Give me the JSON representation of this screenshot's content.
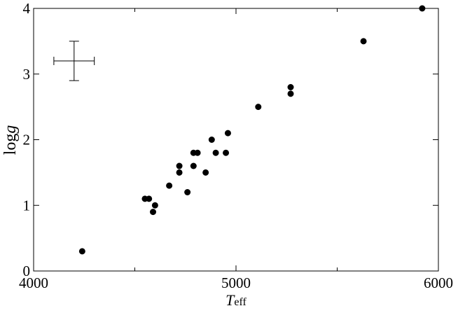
{
  "chart_data": {
    "type": "scatter",
    "xlabel": [
      "T",
      "eff"
    ],
    "ylabel": [
      "log",
      "g"
    ],
    "x": [
      4240,
      4550,
      4570,
      4600,
      4590,
      4670,
      4720,
      4720,
      4760,
      4790,
      4790,
      4810,
      4850,
      4880,
      4900,
      4950,
      4960,
      5110,
      5270,
      5270,
      5630,
      5920
    ],
    "series": [
      {
        "color": "#000000",
        "values": [
          0.3,
          1.1,
          1.1,
          1.0,
          0.9,
          1.3,
          1.6,
          1.5,
          1.2,
          1.6,
          1.8,
          1.8,
          1.5,
          2.0,
          1.8,
          1.8,
          2.1,
          2.5,
          2.8,
          2.7,
          3.5,
          4.0
        ]
      }
    ],
    "error_bar": {
      "x": 4200,
      "y": 3.2,
      "xerr": 100,
      "yerr": 0.3
    },
    "xlim": [
      4000,
      6000
    ],
    "xticks": [
      4000,
      5000,
      6000
    ],
    "xminorticks": [
      4500,
      5500
    ],
    "ylim": [
      0,
      4
    ],
    "yticks": [
      0,
      1,
      2,
      3,
      4
    ]
  }
}
